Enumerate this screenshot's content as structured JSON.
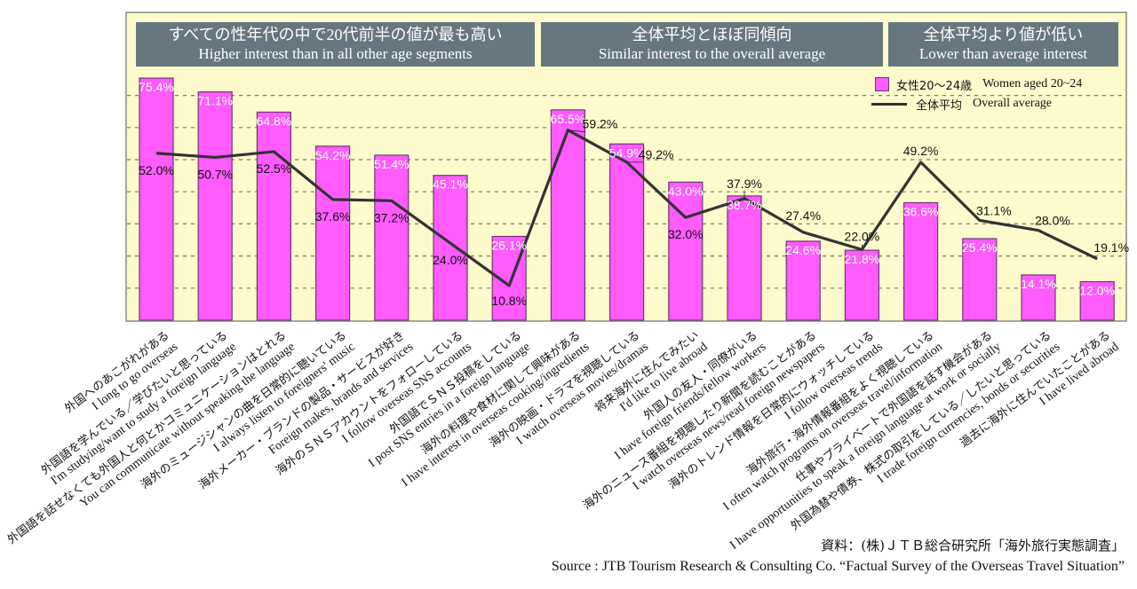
{
  "groups": [
    {
      "jp": "すべての性年代の中で20代前半の値が最も高い",
      "en": "Higher interest than in all other age segments"
    },
    {
      "jp": "全体平均とほぼ同傾向",
      "en": "Similar interest to the overall average"
    },
    {
      "jp": "全体平均より値が低い",
      "en": "Lower than average interest"
    }
  ],
  "legend": {
    "bar_jp": "女性20～24歳",
    "bar_en": "Women aged 20~24",
    "line_jp": "全体平均",
    "line_en": "Overall average"
  },
  "source": {
    "jp": "資料：(株)ＪＴＢ総合研究所「海外旅行実態調査」",
    "en": "Source :    JTB Tourism Research & Consulting Co. “Factual Survey of the Overseas Travel Situation”"
  },
  "colors": {
    "bar": "#ff5bff",
    "bar_border": "#6b3a72",
    "line": "#333333",
    "plot_bg": "#fdfbcc",
    "header_bg": "#66777f"
  },
  "chart_data": {
    "type": "bar",
    "title": "",
    "xlabel": "",
    "ylabel": "",
    "ylim": [
      0,
      100
    ],
    "grid": true,
    "legend_position": "top-right",
    "categories": [
      {
        "jp": "外国へのあこがれがある",
        "en": "I long to go overseas"
      },
      {
        "jp": "外国語を学んでいる／学びたいと思っている",
        "en": "I'm studying/want to study a foreign language"
      },
      {
        "jp": "外国語を話せなくても外国人と何とかコミュニケーションはとれる",
        "en": "You can communicate without speaking the language"
      },
      {
        "jp": "海外のミュージシャンの曲を日常的に聴いている",
        "en": "I always listen to foreigners' music"
      },
      {
        "jp": "海外メーカー・ブランドの製品・サービスが好き",
        "en": "Foreign makes, brands and services"
      },
      {
        "jp": "海外のＳＮＳアカウントをフォローしている",
        "en": "I follow overseas SNS accounts"
      },
      {
        "jp": "外国語でＳＮＳ投稿をしている",
        "en": "I post SNS entries in a foreign language"
      },
      {
        "jp": "海外の料理や食材に関して興味がある",
        "en": "I have interest in overseas cooking/ingredients"
      },
      {
        "jp": "海外の映画・ドラマを視聴している",
        "en": "I watch overseas movies/dramas"
      },
      {
        "jp": "将来海外に住んでみたい",
        "en": "I'd like to live abroad"
      },
      {
        "jp": "外国人の友人・同僚がいる",
        "en": "I have foreign friends/fellow workers"
      },
      {
        "jp": "海外のニュース番組を視聴したり新聞を読むことがある",
        "en": "I watch overseas news/read foreign newspapers"
      },
      {
        "jp": "海外のトレンド情報を日常的にウォッチしている",
        "en": "I follow overseas trends"
      },
      {
        "jp": "海外旅行・海外情報番組をよく視聴している",
        "en": "I often watch programs on overseas travel/information"
      },
      {
        "jp": "仕事やプライベートで外国語を話す機会がある",
        "en": "I have opportunities to speak a foreign language at work or socially"
      },
      {
        "jp": "外国為替や債券、株式の取引をしている／したいと思っている",
        "en": "I trade foreign currencies, bonds or securities"
      },
      {
        "jp": "過去に海外に住んでいたことがある",
        "en": "I have lived abroad"
      }
    ],
    "series": [
      {
        "name": "女性20～24歳 Women aged 20~24",
        "type": "bar",
        "values": [
          75.4,
          71.1,
          64.8,
          54.2,
          51.4,
          45.1,
          26.1,
          65.5,
          54.9,
          43.0,
          38.7,
          24.6,
          21.8,
          36.6,
          25.4,
          14.1,
          12.0
        ]
      },
      {
        "name": "全体平均 Overall average",
        "type": "line",
        "values": [
          52.0,
          50.7,
          52.5,
          37.6,
          37.2,
          24.0,
          10.8,
          59.2,
          49.2,
          32.0,
          37.9,
          27.4,
          22.0,
          49.2,
          31.1,
          28.0,
          19.1
        ]
      }
    ],
    "bar_labels": [
      "75.4%",
      "71.1%",
      "64.8%",
      "54.2%",
      "51.4%",
      "45.1%",
      "26.1%",
      "65.5%",
      "54.9%",
      "43.0%",
      "38.7%",
      "24.6%",
      "21.8%",
      "36.6%",
      "25.4%",
      "14.1%",
      "12.0%"
    ],
    "line_labels": [
      "52.0%",
      "50.7%",
      "52.5%",
      "37.6%",
      "37.2%",
      "24.0%",
      "10.8%",
      "59.2%",
      "49.2%",
      "32.0%",
      "37.9%",
      "27.4%",
      "22.0%",
      "49.2%",
      "31.1%",
      "28.0%",
      "19.1%"
    ],
    "gridlines": [
      10,
      20,
      30,
      40,
      50,
      60,
      70
    ],
    "group_spans": [
      [
        0,
        6
      ],
      [
        7,
        12
      ],
      [
        13,
        16
      ]
    ]
  }
}
